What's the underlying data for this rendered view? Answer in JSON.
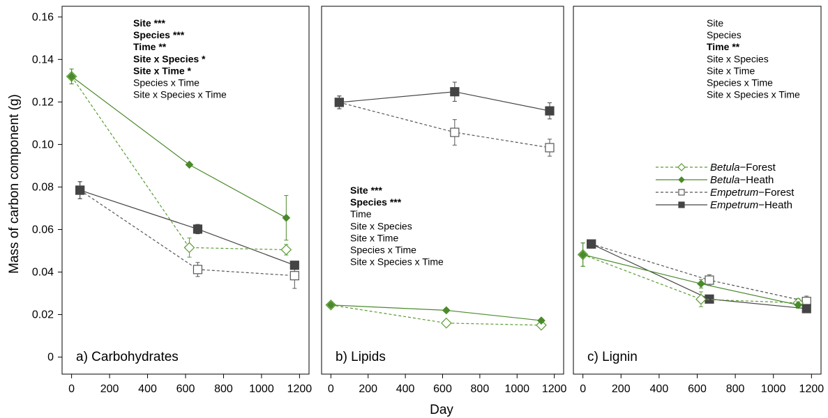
{
  "figure": {
    "ylabel": "Mass of carbon component (g)",
    "xlabel": "Day"
  },
  "chart_data": [
    {
      "type": "line",
      "panel_label": "a) Carbohydrates",
      "xlim": [
        -50,
        1250
      ],
      "ylim": [
        -0.008,
        0.165
      ],
      "xticks": [
        "0",
        "200",
        "400",
        "600",
        "800",
        "1000",
        "1200"
      ],
      "yticks": [
        "0",
        "0.02",
        "0.04",
        "0.06",
        "0.08",
        "0.10",
        "0.12",
        "0.14",
        "0.16"
      ],
      "x": [
        0,
        620,
        1130
      ],
      "series": [
        {
          "name": "Betula−Forest",
          "values": [
            0.132,
            0.0515,
            0.0505
          ],
          "errors": [
            0.0035,
            0.0045,
            0.0025
          ]
        },
        {
          "name": "Betula−Heath",
          "values": [
            0.132,
            0.0905,
            0.0655
          ],
          "errors": [
            0.0035,
            0.0008,
            0.0105
          ]
        },
        {
          "name": "Empetrum−Forest",
          "values": [
            0.0785,
            0.0412,
            0.0383
          ],
          "errors": [
            0.004,
            0.0033,
            0.006
          ]
        },
        {
          "name": "Empetrum−Heath",
          "values": [
            0.0785,
            0.0602,
            0.0432
          ],
          "errors": [
            0.004,
            0.0022,
            0.0008
          ]
        }
      ],
      "significance": [
        {
          "term": "Site",
          "stars": "***",
          "bold": true
        },
        {
          "term": "Species",
          "stars": "***",
          "bold": true
        },
        {
          "term": "Time",
          "stars": "**",
          "bold": true
        },
        {
          "term": "Site x Species",
          "stars": "*",
          "bold": true
        },
        {
          "term": "Site x Time",
          "stars": "*",
          "bold": true
        },
        {
          "term": "Species x Time",
          "stars": "",
          "bold": false
        },
        {
          "term": "Site x Species x Time",
          "stars": "",
          "bold": false
        }
      ]
    },
    {
      "type": "line",
      "panel_label": "b) Lipids",
      "xlim": [
        -50,
        1250
      ],
      "ylim": [
        -0.008,
        0.165
      ],
      "xticks": [
        "0",
        "200",
        "400",
        "600",
        "800",
        "1000",
        "1200"
      ],
      "x": [
        0,
        620,
        1130
      ],
      "series": [
        {
          "name": "Betula−Forest",
          "values": [
            0.0245,
            0.016,
            0.015
          ],
          "errors": [
            0.001,
            0.0012,
            0.001
          ]
        },
        {
          "name": "Betula−Heath",
          "values": [
            0.0245,
            0.022,
            0.0172
          ],
          "errors": [
            0.001,
            0.0008,
            0.0008
          ]
        },
        {
          "name": "Empetrum−Forest",
          "values": [
            0.1198,
            0.1057,
            0.0985
          ],
          "errors": [
            0.003,
            0.006,
            0.004
          ]
        },
        {
          "name": "Empetrum−Heath",
          "values": [
            0.1198,
            0.1248,
            0.1158
          ],
          "errors": [
            0.003,
            0.0045,
            0.0038
          ]
        }
      ],
      "significance": [
        {
          "term": "Site",
          "stars": "***",
          "bold": true
        },
        {
          "term": "Species",
          "stars": "***",
          "bold": true
        },
        {
          "term": "Time",
          "stars": "",
          "bold": false
        },
        {
          "term": "Site x Species",
          "stars": "",
          "bold": false
        },
        {
          "term": "Site x Time",
          "stars": "",
          "bold": false
        },
        {
          "term": "Species x Time",
          "stars": "",
          "bold": false
        },
        {
          "term": "Site x Species x Time",
          "stars": "",
          "bold": false
        }
      ]
    },
    {
      "type": "line",
      "panel_label": "c) Lignin",
      "xlim": [
        -50,
        1250
      ],
      "ylim": [
        -0.008,
        0.165
      ],
      "xticks": [
        "0",
        "200",
        "400",
        "600",
        "800",
        "1000",
        "1200"
      ],
      "x": [
        0,
        620,
        1130
      ],
      "series": [
        {
          "name": "Betula−Forest",
          "values": [
            0.0482,
            0.0272,
            0.0255
          ],
          "errors": [
            0.0055,
            0.0035,
            0.002
          ]
        },
        {
          "name": "Betula−Heath",
          "values": [
            0.0482,
            0.0345,
            0.0245
          ],
          "errors": [
            0.0055,
            0.002,
            0.0015
          ]
        },
        {
          "name": "Empetrum−Forest",
          "values": [
            0.0532,
            0.0362,
            0.0262
          ],
          "errors": [
            0.0015,
            0.0025,
            0.0025
          ]
        },
        {
          "name": "Empetrum−Heath",
          "values": [
            0.0532,
            0.0273,
            0.0228
          ],
          "errors": [
            0.0015,
            0.0015,
            0.0012
          ]
        }
      ],
      "significance": [
        {
          "term": "Site",
          "stars": "",
          "bold": false
        },
        {
          "term": "Species",
          "stars": "",
          "bold": false
        },
        {
          "term": "Time",
          "stars": "**",
          "bold": true
        },
        {
          "term": "Site x Species",
          "stars": "",
          "bold": false
        },
        {
          "term": "Site x Time",
          "stars": "",
          "bold": false
        },
        {
          "term": "Species x Time",
          "stars": "",
          "bold": false
        },
        {
          "term": "Site x Species x Time",
          "stars": "",
          "bold": false
        }
      ]
    }
  ],
  "legend": {
    "location": "panel c, right-middle",
    "entries": [
      {
        "genus": "Betula",
        "site": "−Forest",
        "series": "Betula−Forest"
      },
      {
        "genus": "Betula",
        "site": "−Heath",
        "series": "Betula−Heath"
      },
      {
        "genus": "Empetrum",
        "site": "−Forest",
        "series": "Empetrum−Forest"
      },
      {
        "genus": "Empetrum",
        "site": "−Heath",
        "series": "Empetrum−Heath"
      }
    ]
  },
  "styles": {
    "Betula−Forest": {
      "color": "#5a9a32",
      "dash": "4,3",
      "marker": "diamond-open"
    },
    "Betula−Heath": {
      "color": "#4a8a2a",
      "dash": "",
      "marker": "diamond-filled"
    },
    "Empetrum−Forest": {
      "color": "#555555",
      "dash": "4,3",
      "marker": "square-open"
    },
    "Empetrum−Heath": {
      "color": "#444444",
      "dash": "",
      "marker": "square-filled"
    }
  }
}
